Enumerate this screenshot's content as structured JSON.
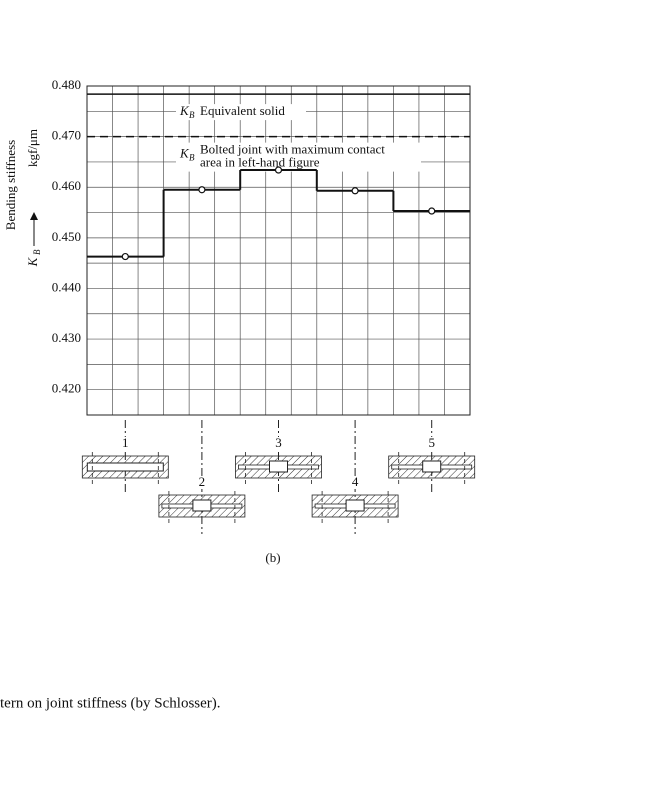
{
  "chart_data": {
    "type": "step",
    "y_title": "Bending stiffness",
    "y_unit": "kgf/μm",
    "symbol": "K",
    "symbol_sub": "B",
    "categories": [
      "1",
      "2",
      "3",
      "4",
      "5"
    ],
    "values": [
      0.4463,
      0.4595,
      0.4634,
      0.4593,
      0.4553
    ],
    "color": "#111111",
    "ylim": [
      0.415,
      0.48
    ],
    "yticks": [
      {
        "value": 0.42,
        "label": "0.420"
      },
      {
        "value": 0.43,
        "label": "0.430"
      },
      {
        "value": 0.44,
        "label": "0.440"
      },
      {
        "value": 0.45,
        "label": "0.450"
      },
      {
        "value": 0.46,
        "label": "0.460"
      },
      {
        "value": 0.47,
        "label": "0.470"
      },
      {
        "value": 0.48,
        "label": "0.480"
      }
    ],
    "minor_grid": [
      0.415,
      0.425,
      0.435,
      0.445,
      0.455,
      0.465,
      0.475
    ],
    "grid": true,
    "reference_lines": [
      {
        "value": 0.4784,
        "style": "solid",
        "label_lines": [
          "Equivalent solid"
        ]
      },
      {
        "value": 0.47,
        "style": "dashed",
        "label_lines": [
          "Bolted joint with maximum contact",
          "area in left-hand figure"
        ]
      }
    ],
    "panel_label": "(b)"
  },
  "figure_caption": "tern on joint stiffness (by Schlosser)."
}
